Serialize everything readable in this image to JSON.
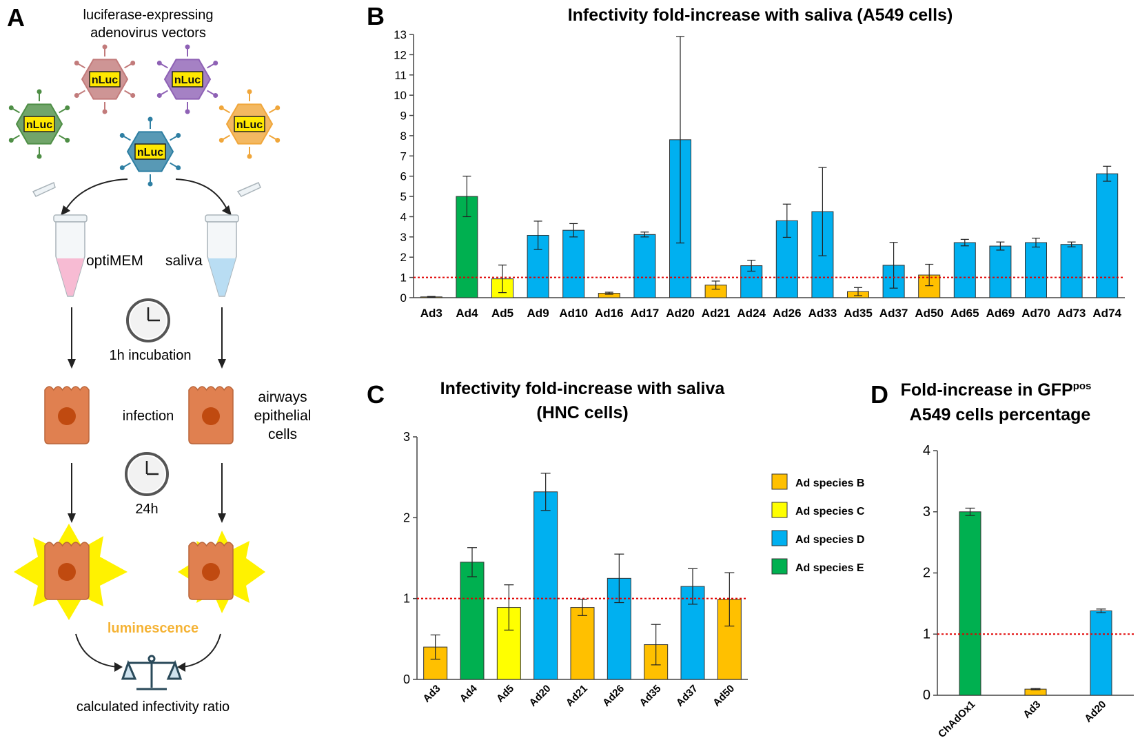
{
  "colors": {
    "species_b": "#FFC000",
    "species_c": "#FFFF00",
    "species_d": "#00B0F0",
    "species_e": "#00B050",
    "reference_line": "#E00000",
    "cell": "#E08050",
    "nucleus": "#C04A10",
    "glow": "#FFF200",
    "luminescence": "#F5B335"
  },
  "panel_labels": {
    "a": "A",
    "b": "B",
    "c": "C",
    "d": "D"
  },
  "schematic": {
    "title_line1": "luciferase-expressing",
    "title_line2": "adenovirus vectors",
    "virus_label": "nLuc",
    "virus_colors": [
      "#4E8E45",
      "#C27B7B",
      "#8E61B5",
      "#F0A63A",
      "#2E7FA3"
    ],
    "tube_left_label": "optiMEM",
    "tube_right_label": "saliva",
    "tube_left_color": "#F7BBD3",
    "tube_right_color": "#B9DDF3",
    "step1": "1h incubation",
    "step2_label": "infection",
    "cells_line1": "airways",
    "cells_line2": "epithelial",
    "cells_line3": "cells",
    "step3": "24h",
    "luminescence": "luminescence",
    "result": "calculated infectivity ratio"
  },
  "chart_data": [
    {
      "id": "B",
      "type": "bar",
      "title": "Infectivity fold-increase with saliva (A549 cells)",
      "xlabel": "",
      "ylabel": "",
      "ylim": [
        0,
        13
      ],
      "yticks": [
        0,
        1,
        2,
        3,
        4,
        5,
        6,
        7,
        8,
        9,
        10,
        11,
        12,
        13
      ],
      "reference_line": 1,
      "categories": [
        "Ad3",
        "Ad4",
        "Ad5",
        "Ad9",
        "Ad10",
        "Ad16",
        "Ad17",
        "Ad20",
        "Ad21",
        "Ad24",
        "Ad26",
        "Ad33",
        "Ad35",
        "Ad37",
        "Ad50",
        "Ad65",
        "Ad69",
        "Ad70",
        "Ad73",
        "Ad74"
      ],
      "species": [
        "B",
        "E",
        "C",
        "D",
        "D",
        "B",
        "D",
        "D",
        "B",
        "D",
        "D",
        "D",
        "B",
        "D",
        "B",
        "D",
        "D",
        "D",
        "D",
        "D"
      ],
      "values": [
        0.04,
        5.0,
        0.93,
        3.08,
        3.33,
        0.22,
        3.12,
        7.8,
        0.62,
        1.58,
        3.8,
        4.25,
        0.3,
        1.6,
        1.12,
        2.72,
        2.55,
        2.72,
        2.63,
        6.12
      ],
      "errors": [
        0.02,
        1.0,
        0.68,
        0.7,
        0.33,
        0.05,
        0.12,
        5.1,
        0.2,
        0.27,
        0.82,
        2.18,
        0.2,
        1.13,
        0.53,
        0.16,
        0.2,
        0.22,
        0.12,
        0.37
      ]
    },
    {
      "id": "C",
      "type": "bar",
      "title": "Infectivity fold-increase with saliva",
      "subtitle": "(HNC cells)",
      "xlabel": "",
      "ylabel": "",
      "ylim": [
        0,
        3
      ],
      "yticks": [
        0,
        1,
        2,
        3
      ],
      "reference_line": 1,
      "categories": [
        "Ad3",
        "Ad4",
        "Ad5",
        "Ad20",
        "Ad21",
        "Ad26",
        "Ad35",
        "Ad37",
        "Ad50"
      ],
      "species": [
        "B",
        "E",
        "C",
        "D",
        "B",
        "D",
        "B",
        "D",
        "B"
      ],
      "values": [
        0.4,
        1.45,
        0.89,
        2.32,
        0.89,
        1.25,
        0.43,
        1.15,
        0.99
      ],
      "errors": [
        0.15,
        0.18,
        0.28,
        0.23,
        0.1,
        0.3,
        0.25,
        0.22,
        0.33
      ],
      "legend": [
        {
          "label": "Ad species B",
          "species": "B"
        },
        {
          "label": "Ad species C",
          "species": "C"
        },
        {
          "label": "Ad species D",
          "species": "D"
        },
        {
          "label": "Ad species E",
          "species": "E"
        }
      ],
      "legend_position": "right"
    },
    {
      "id": "D",
      "type": "bar",
      "title": "Fold-increase in GFP",
      "title_superscript": "pos",
      "subtitle": "A549 cells percentage",
      "xlabel": "",
      "ylabel": "",
      "ylim": [
        0,
        4
      ],
      "yticks": [
        0,
        1,
        2,
        3,
        4
      ],
      "reference_line": 1,
      "categories": [
        "ChAdOx1",
        "Ad3",
        "Ad20"
      ],
      "species": [
        "E",
        "B",
        "D"
      ],
      "values": [
        3.0,
        0.1,
        1.38
      ],
      "errors": [
        0.06,
        0.01,
        0.03
      ]
    }
  ]
}
